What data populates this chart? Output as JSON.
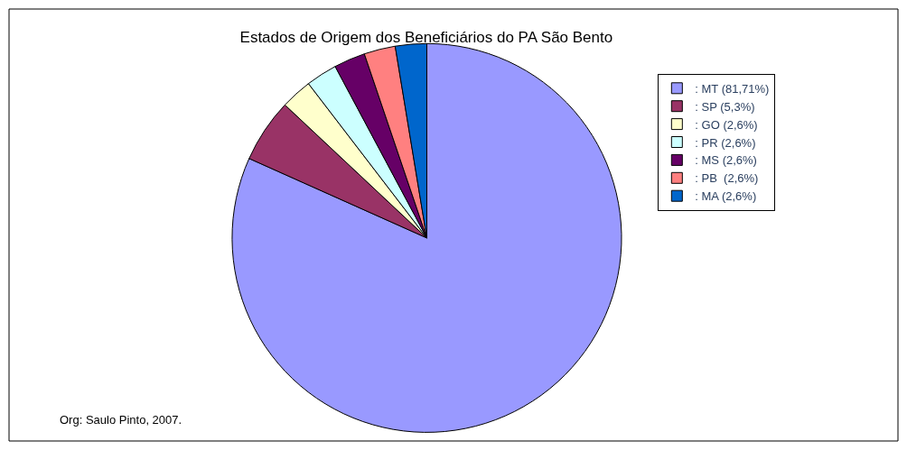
{
  "chart_data": {
    "type": "pie",
    "title": "Estados de Origem dos Beneficiários do PA São Bento",
    "categories": [
      ": MT (81,71%)",
      ": SP (5,3%)",
      ": GO (2,6%)",
      ": PR (2,6%)",
      ": MS (2,6%)",
      ": PB  (2,6%)",
      ": MA (2,6%)"
    ],
    "values": [
      81.71,
      5.3,
      2.6,
      2.6,
      2.6,
      2.6,
      2.6
    ],
    "colors": [
      "#9999ff",
      "#993366",
      "#ffffcc",
      "#ccffff",
      "#660066",
      "#ff8080",
      "#0066cc"
    ],
    "legend": "right",
    "annotations": [
      "Org: Saulo Pinto, 2007."
    ]
  }
}
